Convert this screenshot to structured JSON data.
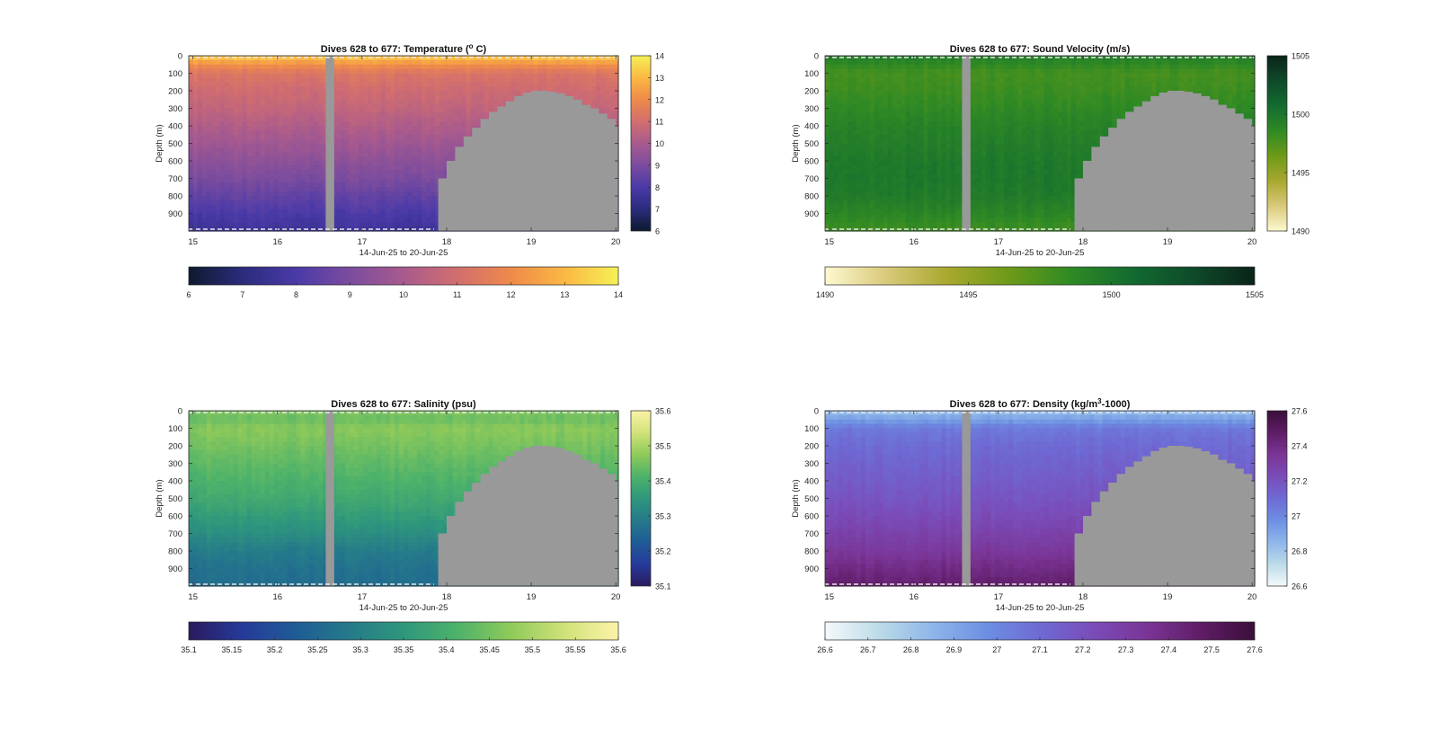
{
  "figure": {
    "background": "#ffffff",
    "axis_color": "#262626",
    "missing_color": "#999999"
  },
  "chart_data": [
    {
      "type": "heatmap",
      "variable": "temperature",
      "title": "Dives 628 to 677: Temperature (",
      "title_sup": "o",
      "title_suffix": " C)",
      "xlabel": "14-Jun-25 to 20-Jun-25",
      "ylabel": "Depth (m)",
      "xlim": [
        14.95,
        20.03
      ],
      "ylim": [
        0,
        1000
      ],
      "xticks": [
        15,
        16,
        17,
        18,
        19,
        20
      ],
      "xtick_labels": [
        "15",
        "16",
        "17",
        "18",
        "19",
        "20"
      ],
      "yticks": [
        0,
        100,
        200,
        300,
        400,
        500,
        600,
        700,
        800,
        900
      ],
      "ytick_labels": [
        "0",
        "100",
        "200",
        "300",
        "400",
        "500",
        "600",
        "700",
        "800",
        "900"
      ],
      "clim": [
        6,
        14
      ],
      "colormap": [
        "#0e1a2e",
        "#2a2c7c",
        "#4a3aa8",
        "#7b4c9e",
        "#a85a8e",
        "#d26e6e",
        "#ee8a4a",
        "#fbb844",
        "#f5f155"
      ],
      "surface_profile": [
        [
          0,
          13.4
        ],
        [
          50,
          12.2
        ],
        [
          100,
          11.3
        ],
        [
          200,
          10.9
        ],
        [
          300,
          10.6
        ],
        [
          400,
          10.2
        ],
        [
          500,
          9.8
        ],
        [
          600,
          9.4
        ],
        [
          700,
          9.0
        ],
        [
          800,
          8.5
        ],
        [
          900,
          8.0
        ],
        [
          1000,
          7.6
        ]
      ],
      "colorbar_ticks": [
        6,
        7,
        8,
        9,
        10,
        11,
        12,
        13,
        14
      ],
      "colorbar_labels": [
        "6",
        "7",
        "8",
        "9",
        "10",
        "11",
        "12",
        "13",
        "14"
      ],
      "side_colorbar_ticks": [
        6,
        7,
        8,
        9,
        10,
        11,
        12,
        13,
        14
      ],
      "side_colorbar_labels": [
        "6",
        "7",
        "8",
        "9",
        "10",
        "11",
        "12",
        "13",
        "14"
      ]
    },
    {
      "type": "heatmap",
      "variable": "sound_velocity",
      "title": "Dives 628 to 677: Sound Velocity (m/s)",
      "title_sup": "",
      "title_suffix": "",
      "xlabel": "14-Jun-25 to 20-Jun-25",
      "ylabel": "Depth (m)",
      "xlim": [
        14.95,
        20.03
      ],
      "ylim": [
        0,
        1000
      ],
      "xticks": [
        15,
        16,
        17,
        18,
        19,
        20
      ],
      "xtick_labels": [
        "15",
        "16",
        "17",
        "18",
        "19",
        "20"
      ],
      "yticks": [
        0,
        100,
        200,
        300,
        400,
        500,
        600,
        700,
        800,
        900
      ],
      "ytick_labels": [
        "0",
        "100",
        "200",
        "300",
        "400",
        "500",
        "600",
        "700",
        "800",
        "900"
      ],
      "clim": [
        1490,
        1505
      ],
      "colormap": [
        "#fdf9d0",
        "#d9c97a",
        "#a8a82e",
        "#6d9a18",
        "#2f8a24",
        "#136b30",
        "#0f4a2a",
        "#0a2418"
      ],
      "surface_profile": [
        [
          0,
          1499.5
        ],
        [
          50,
          1498.6
        ],
        [
          100,
          1497.8
        ],
        [
          200,
          1498.1
        ],
        [
          300,
          1498.6
        ],
        [
          400,
          1499.1
        ],
        [
          500,
          1499.4
        ],
        [
          600,
          1499.7
        ],
        [
          700,
          1499.8
        ],
        [
          800,
          1499.6
        ],
        [
          900,
          1498.9
        ],
        [
          1000,
          1498.0
        ]
      ],
      "colorbar_ticks": [
        1490,
        1495,
        1500,
        1505
      ],
      "colorbar_labels": [
        "1490",
        "1495",
        "1500",
        "1505"
      ],
      "side_colorbar_ticks": [
        1490,
        1495,
        1500,
        1505
      ],
      "side_colorbar_labels": [
        "1490",
        "1495",
        "1500",
        "1505"
      ]
    },
    {
      "type": "heatmap",
      "variable": "salinity",
      "title": "Dives 628 to 677: Salinity (psu)",
      "title_sup": "",
      "title_suffix": "",
      "xlabel": "14-Jun-25 to 20-Jun-25",
      "ylabel": "Depth (m)",
      "xlim": [
        14.95,
        20.03
      ],
      "ylim": [
        0,
        1000
      ],
      "xticks": [
        15,
        16,
        17,
        18,
        19,
        20
      ],
      "xtick_labels": [
        "15",
        "16",
        "17",
        "18",
        "19",
        "20"
      ],
      "yticks": [
        0,
        100,
        200,
        300,
        400,
        500,
        600,
        700,
        800,
        900
      ],
      "ytick_labels": [
        "0",
        "100",
        "200",
        "300",
        "400",
        "500",
        "600",
        "700",
        "800",
        "900"
      ],
      "clim": [
        35.1,
        35.6
      ],
      "colormap": [
        "#2a1a5e",
        "#263a9a",
        "#1f5c96",
        "#257a8a",
        "#2f977c",
        "#4db26a",
        "#8fca5a",
        "#d0e27a",
        "#fdf3a8"
      ],
      "surface_profile": [
        [
          0,
          35.46
        ],
        [
          50,
          35.44
        ],
        [
          100,
          35.47
        ],
        [
          200,
          35.45
        ],
        [
          300,
          35.43
        ],
        [
          400,
          35.41
        ],
        [
          500,
          35.39
        ],
        [
          600,
          35.36
        ],
        [
          700,
          35.33
        ],
        [
          800,
          35.29
        ],
        [
          900,
          35.27
        ],
        [
          1000,
          35.26
        ]
      ],
      "colorbar_ticks": [
        35.1,
        35.15,
        35.2,
        35.25,
        35.3,
        35.35,
        35.4,
        35.45,
        35.5,
        35.55,
        35.6
      ],
      "colorbar_labels": [
        "35.1",
        "35.15",
        "35.2",
        "35.25",
        "35.3",
        "35.35",
        "35.4",
        "35.45",
        "35.5",
        "35.55",
        "35.6"
      ],
      "side_colorbar_ticks": [
        35.1,
        35.2,
        35.3,
        35.4,
        35.5,
        35.6
      ],
      "side_colorbar_labels": [
        "35.1",
        "35.2",
        "35.3",
        "35.4",
        "35.5",
        "35.6"
      ]
    },
    {
      "type": "heatmap",
      "variable": "density",
      "title": "Dives 628 to 677: Density (kg/m",
      "title_sup": "3",
      "title_suffix": "-1000)",
      "xlabel": "14-Jun-25 to 20-Jun-25",
      "ylabel": "Depth (m)",
      "xlim": [
        14.95,
        20.03
      ],
      "ylim": [
        0,
        1000
      ],
      "xticks": [
        15,
        16,
        17,
        18,
        19,
        20
      ],
      "xtick_labels": [
        "15",
        "16",
        "17",
        "18",
        "19",
        "20"
      ],
      "yticks": [
        0,
        100,
        200,
        300,
        400,
        500,
        600,
        700,
        800,
        900
      ],
      "ytick_labels": [
        "0",
        "100",
        "200",
        "300",
        "400",
        "500",
        "600",
        "700",
        "800",
        "900"
      ],
      "clim": [
        26.6,
        27.6
      ],
      "colormap": [
        "#f4fafb",
        "#bcdbe8",
        "#8eb6ea",
        "#6d8fe2",
        "#6e6ad4",
        "#7a4cb8",
        "#7a3596",
        "#5f1d66",
        "#3a0f3a"
      ],
      "surface_profile": [
        [
          0,
          26.82
        ],
        [
          50,
          26.92
        ],
        [
          100,
          27.05
        ],
        [
          200,
          27.1
        ],
        [
          300,
          27.13
        ],
        [
          400,
          27.16
        ],
        [
          500,
          27.19
        ],
        [
          600,
          27.23
        ],
        [
          700,
          27.28
        ],
        [
          800,
          27.33
        ],
        [
          900,
          27.4
        ],
        [
          1000,
          27.46
        ]
      ],
      "colorbar_ticks": [
        26.6,
        26.7,
        26.8,
        26.9,
        27,
        27.1,
        27.2,
        27.3,
        27.4,
        27.5,
        27.6
      ],
      "colorbar_labels": [
        "26.6",
        "26.7",
        "26.8",
        "26.9",
        "27",
        "27.1",
        "27.2",
        "27.3",
        "27.4",
        "27.5",
        "27.6"
      ],
      "side_colorbar_ticks": [
        26.6,
        26.8,
        27,
        27.2,
        27.4,
        27.6
      ],
      "side_colorbar_labels": [
        "26.6",
        "26.8",
        "27",
        "27.2",
        "27.4",
        "27.6"
      ]
    }
  ],
  "shared": {
    "gap_x_range": [
      16.57,
      16.67
    ],
    "bottom_profile": [
      [
        17.85,
        1000
      ],
      [
        17.9,
        700
      ],
      [
        18.0,
        600
      ],
      [
        18.1,
        520
      ],
      [
        18.2,
        460
      ],
      [
        18.3,
        410
      ],
      [
        18.4,
        360
      ],
      [
        18.5,
        320
      ],
      [
        18.6,
        290
      ],
      [
        18.7,
        260
      ],
      [
        18.8,
        230
      ],
      [
        18.9,
        210
      ],
      [
        19.0,
        200
      ],
      [
        19.1,
        200
      ],
      [
        19.2,
        205
      ],
      [
        19.3,
        215
      ],
      [
        19.4,
        230
      ],
      [
        19.5,
        250
      ],
      [
        19.6,
        280
      ],
      [
        19.7,
        300
      ],
      [
        19.8,
        330
      ],
      [
        19.9,
        360
      ],
      [
        20.0,
        400
      ]
    ]
  }
}
